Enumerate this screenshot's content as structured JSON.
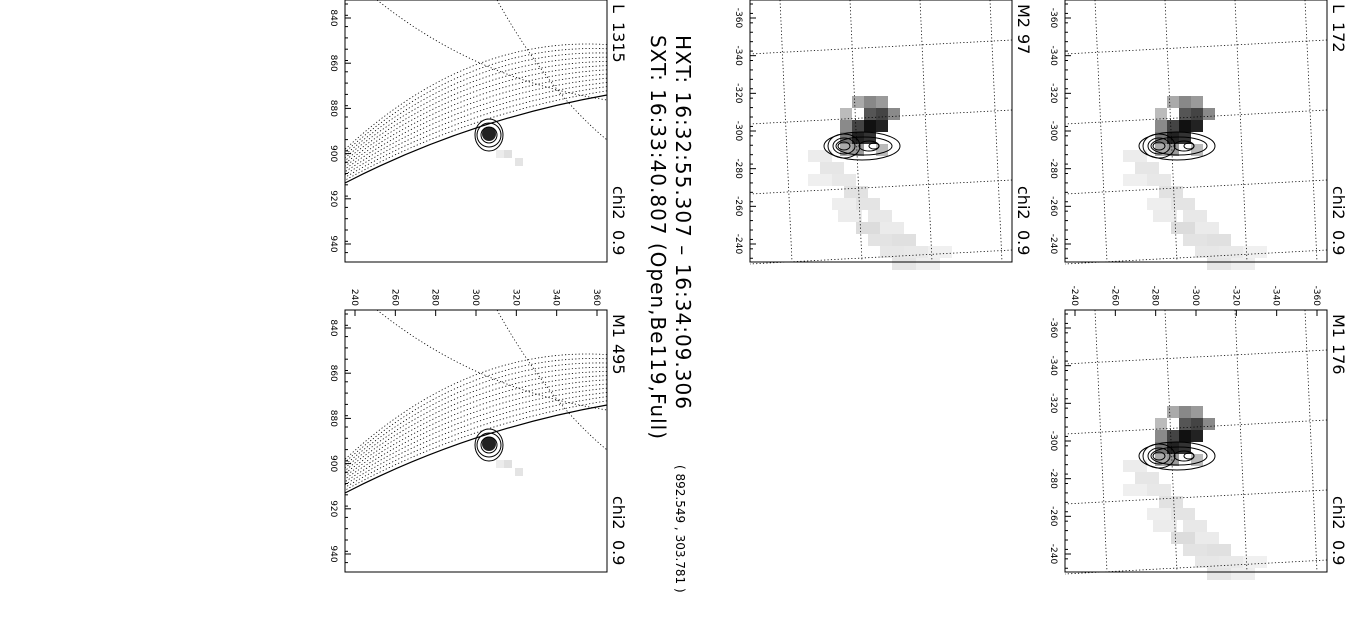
{
  "header": {
    "hxt": "HXT: 16:32:55.307 – 16:34:09.306",
    "position": "( 892.549 , 303.781 )",
    "sxt": "SXT: 16:33:40.807 (Open,Be119,Full)"
  },
  "panels": [
    {
      "label": "L",
      "count": 172,
      "chi2_label": "chi2",
      "chi2": 0.9,
      "x_ticks": [
        -360,
        -340,
        -320,
        -300,
        -280,
        -260,
        -240
      ]
    },
    {
      "label": "M1",
      "count": 176,
      "chi2_label": "chi2",
      "chi2": 0.9,
      "x_ticks": [
        -360,
        -340,
        -320,
        -300,
        -280,
        -260,
        -240
      ],
      "y_ticks": [
        -360,
        -340,
        -320,
        -300,
        -280,
        -260,
        -240
      ]
    },
    {
      "label": "M2",
      "count": 97,
      "chi2_label": "chi2",
      "chi2": 0.9,
      "x_ticks": [
        -360,
        -340,
        -320,
        -300,
        -280,
        -260,
        -240
      ]
    },
    {
      "label": "L",
      "count": 1315,
      "chi2_label": "chi2",
      "chi2": 0.9,
      "x_ticks": [
        840,
        860,
        880,
        900,
        920,
        940
      ]
    },
    {
      "label": "M1",
      "count": 495,
      "chi2_label": "chi2",
      "chi2": 0.9,
      "x_ticks": [
        840,
        860,
        880,
        900,
        920,
        940
      ],
      "y_ticks": [
        360,
        340,
        320,
        300,
        280,
        260,
        240
      ]
    }
  ]
}
